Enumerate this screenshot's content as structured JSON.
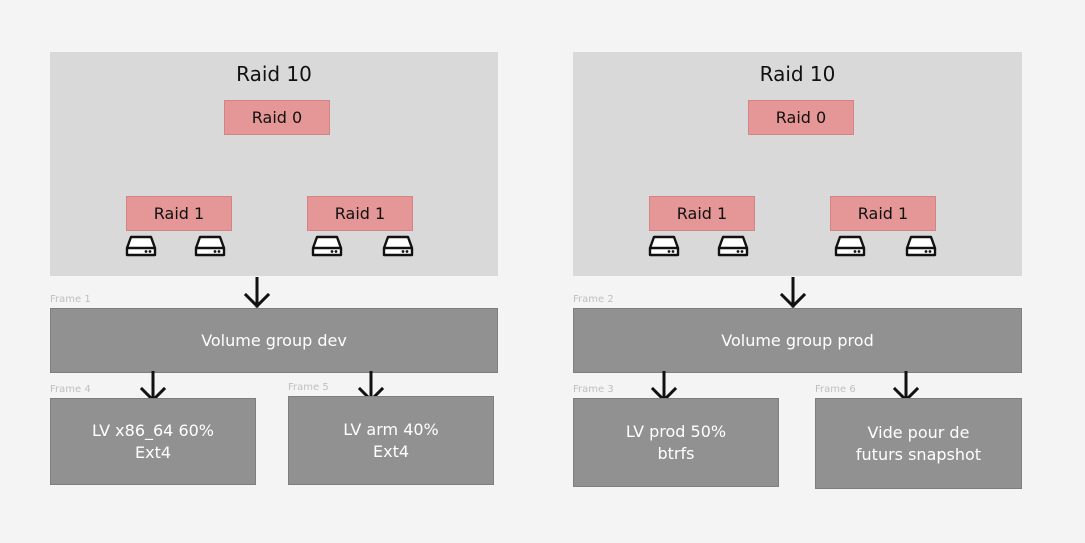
{
  "left": {
    "raid10_label": "Raid 10",
    "raid0_label": "Raid 0",
    "raid1_left_label": "Raid 1",
    "raid1_right_label": "Raid 1",
    "frame_volume_label": "Frame 1",
    "volume_group_label": "Volume group dev",
    "frame_lv1_label": "Frame 4",
    "lv1_text": "LV x86_64 60%\nExt4",
    "frame_lv2_label": "Frame 5",
    "lv2_text": "LV arm 40%\nExt4"
  },
  "right": {
    "raid10_label": "Raid 10",
    "raid0_label": "Raid 0",
    "raid1_left_label": "Raid 1",
    "raid1_right_label": "Raid 1",
    "frame_volume_label": "Frame 2",
    "volume_group_label": "Volume group prod",
    "frame_lv1_label": "Frame 3",
    "lv1_text": "LV prod 50%\nbtrfs",
    "frame_lv2_label": "Frame 6",
    "lv2_text": "Vide pour de\nfuturs snapshot"
  },
  "icons": {
    "disk": "hard-drive-icon",
    "arrow": "arrow-down-icon"
  },
  "colors": {
    "background": "#f4f4f4",
    "raid_panel": "#d9d9d9",
    "raid_box": "#e59696",
    "gray_box": "#919191",
    "line": "#111111",
    "frame_label": "#bfbfbf"
  }
}
